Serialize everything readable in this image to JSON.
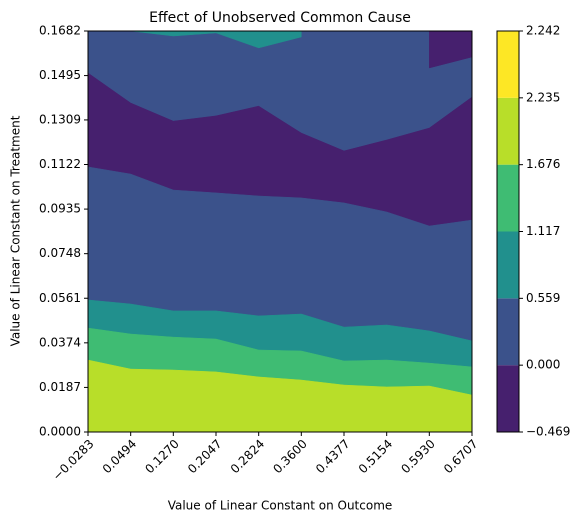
{
  "chart_data": {
    "type": "contourf",
    "title": "Effect of Unobserved Common Cause",
    "x_label": "Value of Linear Constant on Outcome",
    "y_label": "Value of Linear Constant on Treatment",
    "x": [
      -0.0283,
      0.0494,
      0.127,
      0.2047,
      0.2824,
      0.36,
      0.4377,
      0.5154,
      0.593,
      0.6707
    ],
    "xlim": [
      -0.0283,
      0.6707
    ],
    "xticks": [
      {
        "value": -0.0283,
        "label": "−0.0283"
      },
      0.0494,
      {
        "value": 0.127,
        "label": "0.1270"
      },
      0.2047,
      0.2824,
      {
        "value": 0.36,
        "label": "0.3600"
      },
      0.4377,
      0.5154,
      {
        "value": 0.593,
        "label": "0.5930"
      },
      0.6707
    ],
    "ylim": [
      0,
      0.1682
    ],
    "yticks": [
      {
        "value": 0,
        "label": "0.0000"
      },
      0.0187,
      0.0374,
      0.0561,
      0.0748,
      0.0935,
      0.1122,
      0.1309,
      0.1495,
      0.1682
    ],
    "levels": [
      {
        "value": -0.469,
        "label": "−0.469"
      },
      {
        "value": 0,
        "label": "0.000"
      },
      0.559,
      1.117,
      1.676,
      2.235,
      2.242
    ],
    "level_colors": [
      "#46206e",
      "#3b528b",
      "#21908d",
      "#3fbc73",
      "#b8de29",
      "#fde725"
    ],
    "background": "#3b528b",
    "regions": [
      {
        "color": "#46206e",
        "fill": "below",
        "values": [
          0.1506,
          0.138,
          0.1304,
          0.1326,
          0.1367,
          0.1254,
          0.1179,
          0.1225,
          0.1275,
          0.1405
        ]
      },
      {
        "color": "#3b528b",
        "fill": "below",
        "values": [
          0.1112,
          0.1082,
          0.1015,
          0.1003,
          0.099,
          0.0982,
          0.0961,
          0.0923,
          0.0864,
          0.0889
        ]
      },
      {
        "color": "#21908d",
        "fill": "below",
        "values": [
          0.0554,
          0.0537,
          0.0508,
          0.0508,
          0.0487,
          0.0495,
          0.044,
          0.0449,
          0.0424,
          0.0382
        ]
      },
      {
        "color": "#3fbc73",
        "fill": "below",
        "values": [
          0.0436,
          0.0411,
          0.0398,
          0.039,
          0.0344,
          0.034,
          0.0298,
          0.0302,
          0.0289,
          0.0273
        ]
      },
      {
        "color": "#b8de29",
        "fill": "below",
        "values": [
          0.0302,
          0.0264,
          0.026,
          0.0252,
          0.0231,
          0.0218,
          0.0197,
          0.0189,
          0.0193,
          0.0155
        ]
      },
      {
        "color": "#21908d",
        "fill": "above",
        "values": [
          null,
          0.1682,
          0.1661,
          0.1674,
          0.1611,
          0.1657,
          null,
          null,
          null,
          null
        ]
      },
      {
        "color": "#46206e",
        "fill": "above",
        "values": [
          null,
          null,
          null,
          null,
          null,
          null,
          null,
          null,
          0.1527,
          0.1573
        ]
      }
    ]
  }
}
